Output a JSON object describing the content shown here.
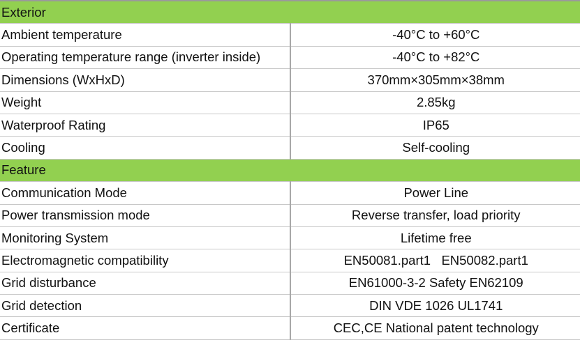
{
  "colors": {
    "section_bg": "#92d050"
  },
  "sections": [
    {
      "title": "Exterior",
      "rows": [
        {
          "label": "Ambient temperature",
          "value": "-40°C to +60°C"
        },
        {
          "label": "Operating temperature range (inverter inside)",
          "value": "-40°C to +82°C"
        },
        {
          "label": "Dimensions (WxHxD)",
          "value": "370mm×305mm×38mm"
        },
        {
          "label": "Weight",
          "value": "2.85kg"
        },
        {
          "label": "Waterproof Rating",
          "value": "IP65"
        },
        {
          "label": "Cooling",
          "value": "Self-cooling"
        }
      ]
    },
    {
      "title": "Feature",
      "rows": [
        {
          "label": "Communication Mode",
          "value": "Power Line"
        },
        {
          "label": "Power transmission mode",
          "value": "Reverse transfer, load priority"
        },
        {
          "label": "Monitoring System",
          "value": "Lifetime free"
        },
        {
          "label": "Electromagnetic compatibility",
          "value": "EN50081.part1   EN50082.part1"
        },
        {
          "label": "Grid disturbance",
          "value": "EN61000-3-2 Safety EN62109"
        },
        {
          "label": "Grid detection",
          "value": "DIN VDE 1026 UL1741"
        },
        {
          "label": "Certificate",
          "value": "CEC,CE National patent technology"
        }
      ]
    }
  ]
}
